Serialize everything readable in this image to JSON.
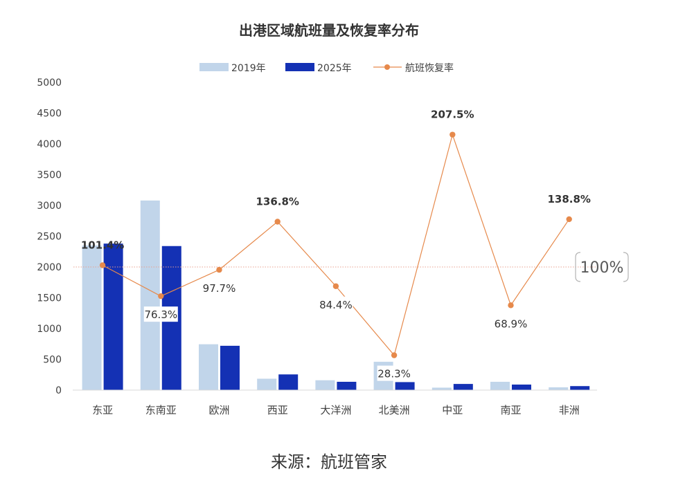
{
  "title": "出港区域航班量及恢复率分布",
  "legend": {
    "series1": "2019年",
    "series2": "2025年",
    "series3": "航班恢复率"
  },
  "colors": {
    "series1": "#c1d5ea",
    "series2": "#1431b4",
    "line": "#e6894b",
    "reference": "#e8a08f"
  },
  "source": "来源：航班管家",
  "reference_label": "100%",
  "chart_data": {
    "type": "bar",
    "categories": [
      "东亚",
      "东南亚",
      "欧洲",
      "西亚",
      "大洋洲",
      "北美洲",
      "中亚",
      "南亚",
      "非洲"
    ],
    "series": [
      {
        "name": "2019年",
        "type": "bar",
        "values": [
          2350,
          3080,
          745,
          185,
          160,
          460,
          40,
          135,
          45
        ]
      },
      {
        "name": "2025年",
        "type": "bar",
        "values": [
          2380,
          2340,
          720,
          255,
          135,
          130,
          100,
          90,
          65
        ]
      },
      {
        "name": "航班恢复率",
        "type": "line",
        "axis": "secondary",
        "values": [
          101.4,
          76.3,
          97.7,
          136.8,
          84.4,
          28.3,
          207.5,
          68.9,
          138.8
        ],
        "labels": [
          "101.4%",
          "76.3%",
          "97.7%",
          "136.8%",
          "84.4%",
          "28.3%",
          "207.5%",
          "68.9%",
          "138.8%"
        ],
        "bold": [
          true,
          false,
          false,
          true,
          false,
          false,
          true,
          false,
          true
        ]
      }
    ],
    "y_ticks": [
      "0",
      "500",
      "1000",
      "1500",
      "2000",
      "2500",
      "3000",
      "3500",
      "4000",
      "4500",
      "5000"
    ],
    "ylim": [
      0,
      5000
    ],
    "y2lim": [
      0,
      250
    ],
    "reference_line": 100,
    "grid": false,
    "legend_position": "top"
  }
}
